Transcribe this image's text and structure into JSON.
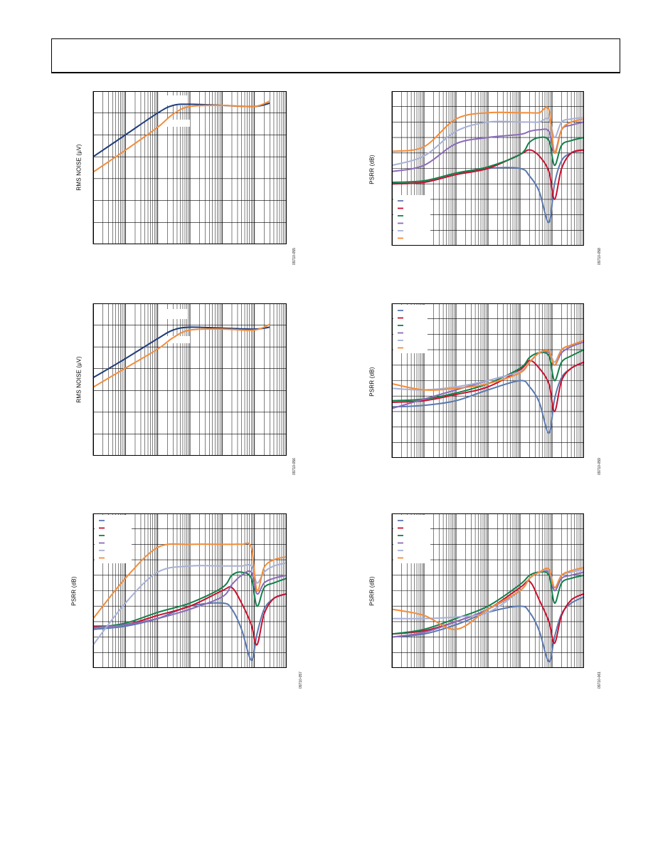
{
  "colors": {
    "blue": "#1f3d7a",
    "orange": "#f28c3a",
    "navy_light": "#5a78b0",
    "red": "#c8102e",
    "green": "#12804a",
    "purple": "#8a6bb8",
    "lilac": "#a8b0d6",
    "grid": "#000000"
  },
  "charts": [
    {
      "id": "c1",
      "ylabel": "RMS NOISE (µV)",
      "fig_id": "09710-055"
    },
    {
      "id": "c2",
      "ylabel": "PSRR (dB)",
      "fig_id": "09710-058"
    },
    {
      "id": "c3",
      "ylabel": "RMS NOISE (µV)",
      "fig_id": "09710-056"
    },
    {
      "id": "c4",
      "ylabel": "PSRR (dB)",
      "fig_id": "09710-059"
    },
    {
      "id": "c5",
      "ylabel": "PSRR (dB)",
      "fig_id": "09710-057"
    },
    {
      "id": "c6",
      "ylabel": "PSRR (dB)",
      "fig_id": "09710-061"
    }
  ],
  "chart_data": [
    {
      "type": "line",
      "title": "",
      "xlabel": "",
      "ylabel": "RMS NOISE (µV)",
      "x_scale": "log",
      "xlim": [
        10,
        10000000
      ],
      "ylim": [
        0,
        7
      ],
      "grid": true,
      "series": [
        {
          "color": "blue",
          "x": [
            10,
            100,
            1000,
            3000,
            10000,
            100000,
            1000000,
            3000000
          ],
          "y": [
            4.0,
            5.0,
            6.0,
            6.35,
            6.4,
            6.35,
            6.3,
            6.45
          ]
        },
        {
          "color": "orange",
          "x": [
            10,
            100,
            1000,
            3000,
            10000,
            100000,
            1000000,
            3000000
          ],
          "y": [
            3.3,
            4.3,
            5.35,
            5.95,
            6.3,
            6.35,
            6.3,
            6.55
          ]
        }
      ]
    },
    {
      "type": "line",
      "title": "",
      "xlabel": "",
      "ylabel": "PSRR (dB)",
      "x_scale": "log",
      "xlim": [
        10,
        10000000
      ],
      "ylim": [
        0,
        100
      ],
      "grid": true,
      "legend": "bottom-left",
      "legend_entries": 6,
      "series": [
        {
          "color": "navy_light",
          "x": [
            10,
            100,
            1000,
            10000,
            100000,
            200000,
            400000,
            800000,
            1200000,
            2000000,
            4000000,
            10000000
          ],
          "y": [
            40,
            41,
            46,
            50,
            50,
            45,
            35,
            15,
            40,
            55,
            60,
            62
          ]
        },
        {
          "color": "red",
          "x": [
            10,
            100,
            1000,
            10000,
            100000,
            200000,
            400000,
            800000,
            1200000,
            2000000,
            4000000,
            10000000
          ],
          "y": [
            40,
            41,
            46,
            50,
            59,
            62,
            58,
            48,
            30,
            50,
            60,
            62
          ]
        },
        {
          "color": "green",
          "x": [
            10,
            100,
            1000,
            10000,
            100000,
            200000,
            400000,
            800000,
            1200000,
            2000000,
            4000000,
            10000000
          ],
          "y": [
            41,
            42,
            47,
            51,
            59,
            67,
            70,
            68,
            52,
            65,
            68,
            70
          ]
        },
        {
          "color": "purple",
          "x": [
            10,
            100,
            1000,
            10000,
            100000,
            200000,
            400000,
            800000,
            1200000,
            2000000,
            4000000,
            10000000
          ],
          "y": [
            48,
            52,
            66,
            70,
            72,
            74,
            75,
            74,
            60,
            75,
            78,
            80
          ]
        },
        {
          "color": "lilac",
          "x": [
            10,
            100,
            1000,
            10000,
            100000,
            200000,
            400000,
            800000,
            1200000,
            2000000,
            4000000,
            10000000
          ],
          "y": [
            52,
            58,
            74,
            80,
            80,
            80,
            80,
            82,
            70,
            80,
            82,
            83
          ]
        },
        {
          "color": "orange",
          "x": [
            10,
            100,
            1000,
            10000,
            100000,
            200000,
            400000,
            800000,
            1200000,
            2000000,
            4000000,
            10000000
          ],
          "y": [
            61,
            64,
            82,
            86,
            86,
            86,
            86,
            88,
            60,
            75,
            80,
            82
          ]
        }
      ]
    },
    {
      "type": "line",
      "title": "",
      "xlabel": "",
      "ylabel": "RMS NOISE (µV)",
      "x_scale": "log",
      "xlim": [
        10,
        10000000
      ],
      "ylim": [
        0,
        8
      ],
      "grid": true,
      "series": [
        {
          "color": "blue",
          "x": [
            10,
            100,
            1000,
            3000,
            10000,
            100000,
            1000000,
            3000000
          ],
          "y": [
            4.1,
            5.1,
            6.15,
            6.6,
            6.75,
            6.7,
            6.65,
            6.75
          ]
        },
        {
          "color": "orange",
          "x": [
            10,
            100,
            1000,
            3000,
            10000,
            100000,
            1000000,
            3000000
          ],
          "y": [
            3.6,
            4.6,
            5.6,
            6.2,
            6.6,
            6.65,
            6.6,
            6.9
          ]
        }
      ]
    },
    {
      "type": "line",
      "title": "",
      "xlabel": "",
      "ylabel": "PSRR (dB)",
      "x_scale": "log",
      "xlim": [
        10,
        10000000
      ],
      "ylim": [
        0,
        100
      ],
      "grid": true,
      "legend": "top-left",
      "legend_entries": 6,
      "series": [
        {
          "color": "navy_light",
          "x": [
            10,
            100,
            1000,
            10000,
            100000,
            200000,
            400000,
            800000,
            1200000,
            2000000,
            4000000,
            10000000
          ],
          "y": [
            33,
            34,
            37,
            44,
            50,
            46,
            36,
            16,
            38,
            52,
            58,
            62
          ]
        },
        {
          "color": "red",
          "x": [
            10,
            100,
            1000,
            10000,
            100000,
            200000,
            400000,
            800000,
            1200000,
            2000000,
            4000000,
            10000000
          ],
          "y": [
            36,
            37,
            41,
            46,
            57,
            63,
            58,
            48,
            30,
            50,
            58,
            62
          ]
        },
        {
          "color": "green",
          "x": [
            10,
            100,
            1000,
            10000,
            100000,
            200000,
            400000,
            800000,
            1200000,
            2000000,
            4000000,
            10000000
          ],
          "y": [
            37,
            38,
            42,
            48,
            58,
            65,
            68,
            66,
            50,
            62,
            66,
            70
          ]
        },
        {
          "color": "purple",
          "x": [
            10,
            100,
            1000,
            10000,
            100000,
            200000,
            400000,
            800000,
            1200000,
            2000000,
            4000000,
            10000000
          ],
          "y": [
            32,
            38,
            44,
            50,
            56,
            62,
            68,
            68,
            60,
            68,
            72,
            75
          ]
        },
        {
          "color": "lilac",
          "x": [
            10,
            100,
            1000,
            10000,
            100000,
            200000,
            400000,
            800000,
            1200000,
            2000000,
            4000000,
            10000000
          ],
          "y": [
            45,
            44,
            46,
            50,
            56,
            62,
            68,
            69,
            62,
            70,
            73,
            76
          ]
        },
        {
          "color": "orange",
          "x": [
            10,
            100,
            1000,
            10000,
            100000,
            200000,
            400000,
            800000,
            1200000,
            2000000,
            4000000,
            10000000
          ],
          "y": [
            48,
            44,
            45,
            48,
            55,
            62,
            68,
            69,
            60,
            70,
            73,
            76
          ]
        }
      ]
    },
    {
      "type": "line",
      "title": "",
      "xlabel": "",
      "ylabel": "PSRR (dB)",
      "x_scale": "log",
      "xlim": [
        10,
        10000000
      ],
      "ylim": [
        0,
        100
      ],
      "grid": true,
      "legend": "top-left",
      "legend_entries": 6,
      "series": [
        {
          "color": "navy_light",
          "x": [
            10,
            100,
            1000,
            10000,
            100000,
            200000,
            400000,
            800000,
            1200000,
            2000000,
            4000000,
            10000000
          ],
          "y": [
            25,
            27,
            32,
            40,
            42,
            38,
            25,
            5,
            22,
            38,
            45,
            48
          ]
        },
        {
          "color": "red",
          "x": [
            10,
            100,
            1000,
            10000,
            100000,
            200000,
            400000,
            800000,
            1200000,
            2000000,
            4000000,
            10000000
          ],
          "y": [
            27,
            28,
            34,
            40,
            50,
            52,
            42,
            28,
            15,
            35,
            45,
            48
          ]
        },
        {
          "color": "green",
          "x": [
            10,
            100,
            1000,
            10000,
            100000,
            200000,
            400000,
            800000,
            1200000,
            2000000,
            4000000,
            10000000
          ],
          "y": [
            26,
            29,
            36,
            42,
            52,
            60,
            62,
            58,
            40,
            52,
            55,
            58
          ]
        },
        {
          "color": "purple",
          "x": [
            10,
            100,
            1000,
            10000,
            100000,
            200000,
            400000,
            800000,
            1200000,
            2000000,
            4000000,
            10000000
          ],
          "y": [
            26,
            28,
            32,
            38,
            46,
            54,
            60,
            62,
            48,
            55,
            58,
            60
          ]
        },
        {
          "color": "lilac",
          "x": [
            10,
            100,
            1000,
            10000,
            100000,
            200000,
            400000,
            800000,
            1200000,
            2000000,
            4000000,
            10000000
          ],
          "y": [
            15,
            42,
            62,
            66,
            66,
            66,
            66,
            66,
            55,
            62,
            66,
            68
          ]
        },
        {
          "color": "orange",
          "x": [
            10,
            100,
            1000,
            10000,
            100000,
            200000,
            400000,
            800000,
            1200000,
            2000000,
            4000000,
            10000000
          ],
          "y": [
            32,
            58,
            78,
            80,
            80,
            80,
            80,
            78,
            50,
            65,
            70,
            72
          ]
        }
      ]
    },
    {
      "type": "line",
      "title": "",
      "xlabel": "",
      "ylabel": "PSRR (dB)",
      "x_scale": "log",
      "xlim": [
        10,
        10000000
      ],
      "ylim": [
        0,
        100
      ],
      "grid": true,
      "legend": "top-left",
      "legend_entries": 6,
      "series": [
        {
          "color": "navy_light",
          "x": [
            10,
            100,
            1000,
            10000,
            100000,
            200000,
            400000,
            800000,
            1200000,
            2000000,
            4000000,
            10000000
          ],
          "y": [
            20,
            22,
            28,
            36,
            40,
            36,
            24,
            4,
            20,
            35,
            42,
            46
          ]
        },
        {
          "color": "red",
          "x": [
            10,
            100,
            1000,
            10000,
            100000,
            200000,
            400000,
            800000,
            1200000,
            2000000,
            4000000,
            10000000
          ],
          "y": [
            22,
            24,
            30,
            38,
            52,
            56,
            44,
            30,
            16,
            34,
            44,
            48
          ]
        },
        {
          "color": "green",
          "x": [
            10,
            100,
            1000,
            10000,
            100000,
            200000,
            400000,
            800000,
            1200000,
            2000000,
            4000000,
            10000000
          ],
          "y": [
            22,
            25,
            32,
            40,
            54,
            60,
            62,
            60,
            42,
            55,
            58,
            60
          ]
        },
        {
          "color": "purple",
          "x": [
            10,
            100,
            1000,
            10000,
            100000,
            200000,
            400000,
            800000,
            1200000,
            2000000,
            4000000,
            10000000
          ],
          "y": [
            20,
            23,
            30,
            38,
            50,
            58,
            62,
            62,
            50,
            58,
            60,
            62
          ]
        },
        {
          "color": "lilac",
          "x": [
            10,
            100,
            1000,
            10000,
            100000,
            200000,
            400000,
            800000,
            1200000,
            2000000,
            4000000,
            10000000
          ],
          "y": [
            32,
            32,
            33,
            36,
            50,
            58,
            62,
            63,
            52,
            60,
            62,
            64
          ]
        },
        {
          "color": "orange",
          "x": [
            10,
            100,
            1000,
            10000,
            100000,
            200000,
            400000,
            800000,
            1200000,
            2000000,
            4000000,
            10000000
          ],
          "y": [
            38,
            34,
            25,
            38,
            50,
            58,
            62,
            64,
            52,
            60,
            63,
            65
          ]
        }
      ]
    }
  ]
}
